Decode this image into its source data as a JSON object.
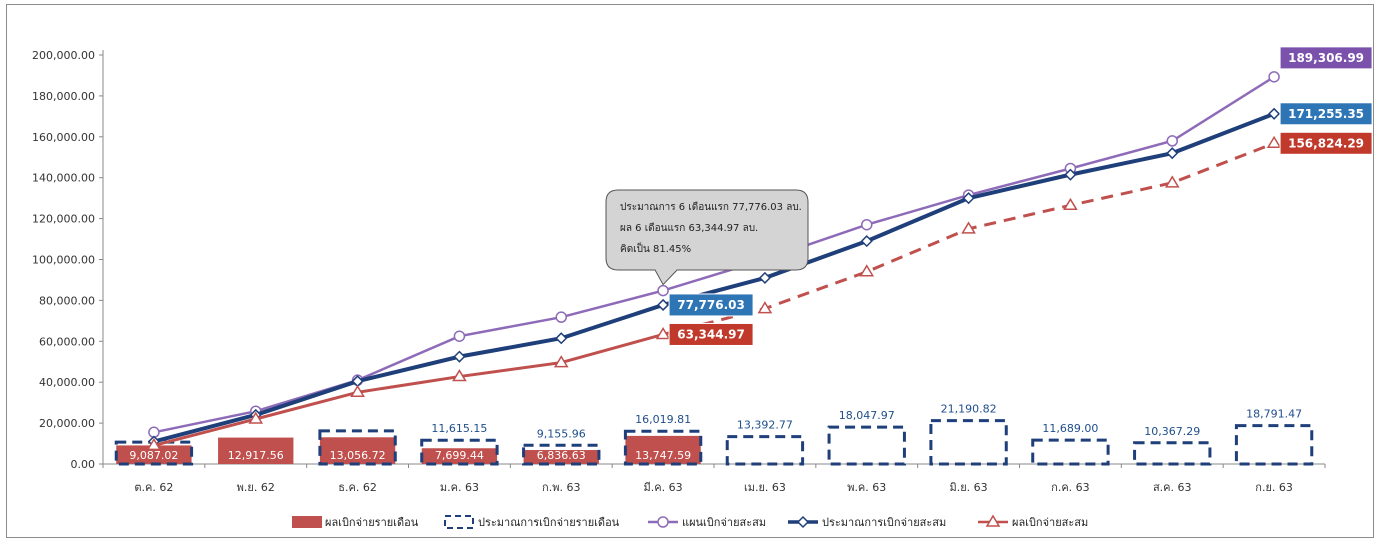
{
  "chart_data": {
    "type": "bar",
    "categories": [
      "ต.ค. 62",
      "พ.ย. 62",
      "ธ.ค. 62",
      "ม.ค. 63",
      "ก.พ. 63",
      "มี.ค. 63",
      "เม.ย. 63",
      "พ.ค. 63",
      "มิ.ย. 63",
      "ก.ค. 63",
      "ส.ค. 63",
      "ก.ย. 63"
    ],
    "ylim": [
      0,
      200000
    ],
    "yticks": [
      "0.00",
      "20,000.00",
      "40,000.00",
      "60,000.00",
      "80,000.00",
      "100,000.00",
      "120,000.00",
      "140,000.00",
      "160,000.00",
      "180,000.00",
      "200,000.00"
    ],
    "series": [
      {
        "name": "ผลเบิกจ่ายรายเดือน",
        "kind": "bar-solid",
        "color": "#c0504d",
        "values": [
          9087.02,
          12917.56,
          13056.72,
          7699.44,
          6836.63,
          13747.59,
          null,
          null,
          null,
          null,
          null,
          null
        ],
        "labels": [
          "9,087.02",
          "12,917.56",
          "13,056.72",
          "7,699.44",
          "6,836.63",
          "13,747.59",
          "",
          "",
          "",
          "",
          "",
          ""
        ]
      },
      {
        "name": "ประมาณการเบิกจ่ายรายเดือน",
        "kind": "bar-dashed",
        "color": "#1f3f7a",
        "values": [
          10700,
          null,
          16200,
          11615.15,
          9155.96,
          16019.81,
          13392.77,
          18047.97,
          21190.82,
          11689.0,
          10367.29,
          18791.47
        ],
        "labels": [
          "",
          "",
          "",
          "11,615.15",
          "9,155.96",
          "16,019.81",
          "13,392.77",
          "18,047.97",
          "21,190.82",
          "11,689.00",
          "10,367.29",
          "18,791.47"
        ]
      },
      {
        "name": "แผนเบิกจ่ายสะสม",
        "kind": "line-circle",
        "color": "#8e6bb8",
        "values": [
          15500,
          25800,
          41000,
          62500,
          71800,
          84800,
          100000,
          117000,
          131500,
          144500,
          158000,
          189306.99
        ]
      },
      {
        "name": "ประมาณการเบิกจ่ายสะสม",
        "kind": "line-diamond",
        "color": "#1f3f7a",
        "values": [
          11000,
          24000,
          40500,
          52500,
          61500,
          77776.03,
          91000,
          109000,
          130000,
          141500,
          152000,
          171255.35
        ]
      },
      {
        "name": "ผลเบิกจ่ายสะสม",
        "kind": "line-triangle",
        "color": "#c0504d",
        "values": [
          9087.02,
          22004.58,
          35061.3,
          42760.74,
          49597.37,
          63344.97,
          76000,
          94000,
          115000,
          126500,
          137500,
          156824.29
        ]
      }
    ],
    "point_labels": [
      {
        "series": 3,
        "index": 5,
        "text": "77,776.03",
        "color": "#2e75b6"
      },
      {
        "series": 4,
        "index": 5,
        "text": "63,344.97",
        "color": "#c0392b"
      },
      {
        "series": 2,
        "index": 11,
        "text": "189,306.99",
        "color": "#7b52ab"
      },
      {
        "series": 3,
        "index": 11,
        "text": "171,255.35",
        "color": "#2e75b6"
      },
      {
        "series": 4,
        "index": 11,
        "text": "156,824.29",
        "color": "#c0392b"
      }
    ],
    "callout": {
      "lines": [
        "ประมาณการ 6 เดือนแรก 77,776.03 ลบ.",
        "ผล 6 เดือนแรก 63,344.97 ลบ.",
        "คิดเป็น 81.45%"
      ]
    },
    "legend_position": "bottom"
  }
}
